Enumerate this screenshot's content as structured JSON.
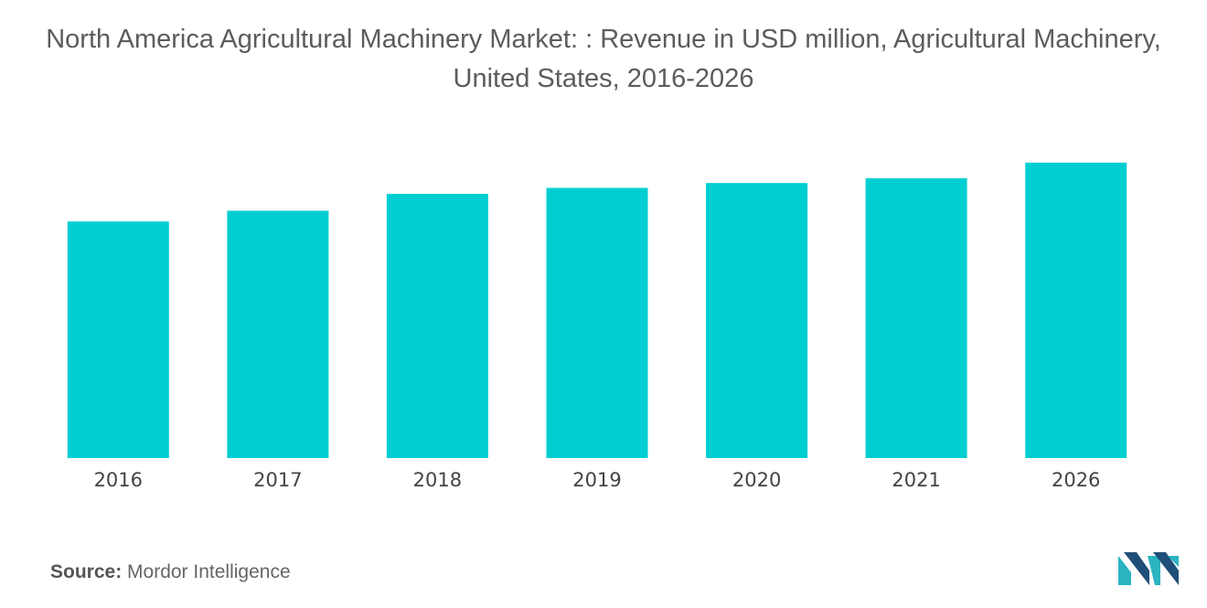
{
  "chart_data": {
    "type": "bar",
    "title": "North America Agricultural Machinery Market: : Revenue in USD million, Agricultural Machinery, United States, 2016-2026",
    "categories": [
      "2016",
      "2017",
      "2018",
      "2019",
      "2020",
      "2021",
      "2026"
    ],
    "values": [
      197,
      206,
      220,
      225,
      229,
      233,
      246
    ],
    "xlabel": "",
    "ylabel": "",
    "ylim": [
      0,
      300
    ],
    "grid": false,
    "legend": "none",
    "bar_color": "#00CED1"
  },
  "source": {
    "label": "Source:",
    "text": "Mordor Intelligence"
  },
  "logo": {
    "icon": "mordor-intelligence-logo",
    "colors": [
      "#1F4E79",
      "#2BB3C0"
    ]
  }
}
